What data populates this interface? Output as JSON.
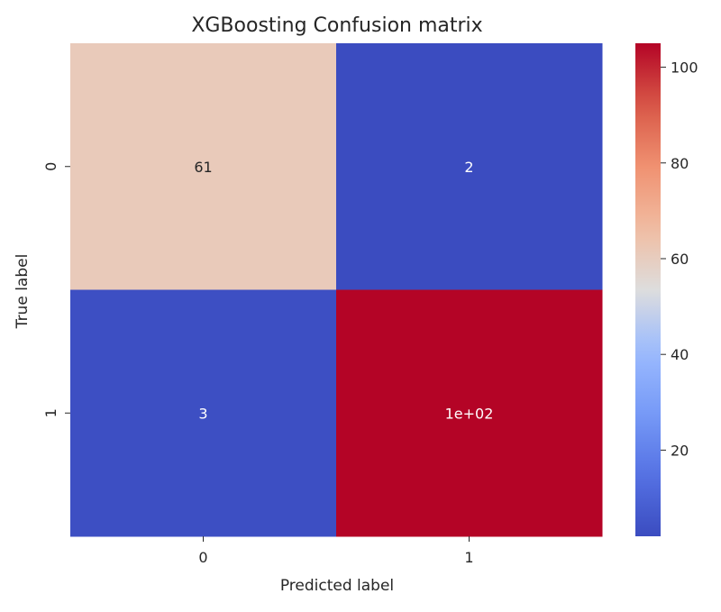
{
  "chart_data": {
    "type": "heatmap",
    "title": "XGBoosting Confusion matrix",
    "xlabel": "Predicted label",
    "ylabel": "True label",
    "x_categories": [
      "0",
      "1"
    ],
    "y_categories": [
      "0",
      "1"
    ],
    "values": [
      [
        61,
        2
      ],
      [
        3,
        105
      ]
    ],
    "annotations": [
      [
        "61",
        "2"
      ],
      [
        "3",
        "1e+02"
      ]
    ],
    "colormap": "coolwarm",
    "colorbar": {
      "range": [
        2,
        105
      ],
      "ticks": [
        20,
        40,
        60,
        80,
        100
      ]
    },
    "grid": false
  },
  "colors": {
    "coolwarm_low": "#3b4cc0",
    "coolwarm_mid": "#dddddd",
    "coolwarm_high": "#b40426",
    "dark_text": "#262626",
    "light_text": "#ffffff"
  }
}
